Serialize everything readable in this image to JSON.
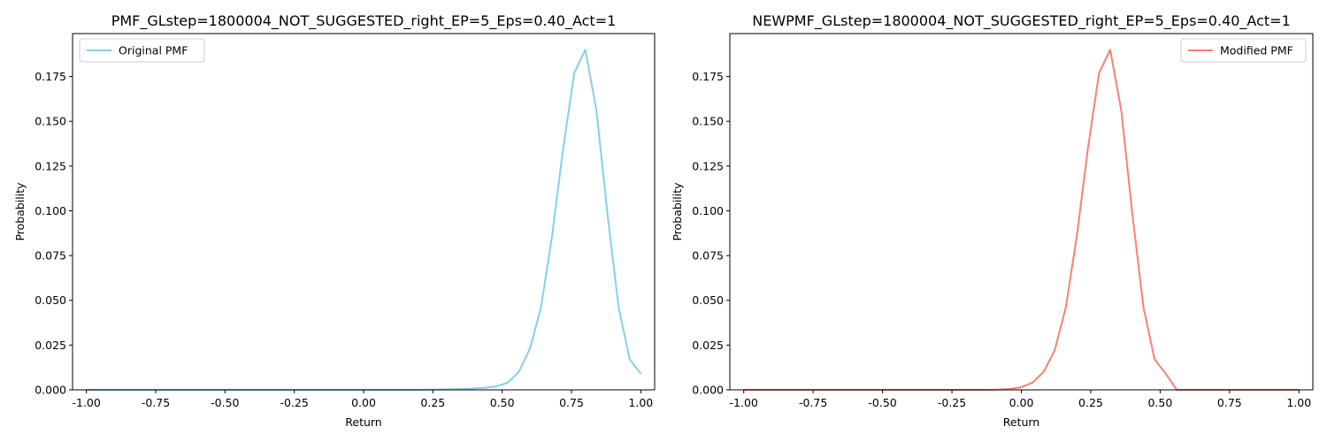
{
  "figure": {
    "background": "#ffffff"
  },
  "chart_data": [
    {
      "type": "line",
      "title": "PMF_GLstep=1800004_NOT_SUGGESTED_right_EP=5_Eps=0.40_Act=1",
      "xlabel": "Return",
      "ylabel": "Probability",
      "xlim": [
        -1.05,
        1.05
      ],
      "ylim": [
        0,
        0.199
      ],
      "xticks": [
        -1.0,
        -0.75,
        -0.5,
        -0.25,
        0.0,
        0.25,
        0.5,
        0.75,
        1.0
      ],
      "xtick_labels": [
        "-1.00",
        "-0.75",
        "-0.50",
        "-0.25",
        "0.00",
        "0.25",
        "0.50",
        "0.75",
        "1.00"
      ],
      "yticks": [
        0,
        0.025,
        0.05,
        0.075,
        0.1,
        0.125,
        0.15,
        0.175
      ],
      "ytick_labels": [
        "0.000",
        "0.025",
        "0.050",
        "0.075",
        "0.100",
        "0.125",
        "0.150",
        "0.175"
      ],
      "legend_position": "upper-left",
      "series": [
        {
          "name": "Original PMF",
          "color": "#87ceeb",
          "x": [
            -1.0,
            -0.96,
            -0.92,
            -0.88,
            -0.84,
            -0.8,
            -0.76,
            -0.72,
            -0.68,
            -0.64,
            -0.6,
            -0.56,
            -0.52,
            -0.48,
            -0.44,
            -0.4,
            -0.36,
            -0.32,
            -0.28,
            -0.24,
            -0.2,
            -0.16,
            -0.12,
            -0.08,
            -0.04,
            0.0,
            0.04,
            0.08,
            0.12,
            0.16,
            0.2,
            0.24,
            0.28,
            0.32,
            0.36,
            0.4,
            0.44,
            0.48,
            0.52,
            0.56,
            0.6,
            0.64,
            0.68,
            0.72,
            0.76,
            0.8,
            0.84,
            0.88,
            0.92,
            0.96,
            1.0
          ],
          "y": [
            0,
            0,
            0,
            0,
            0,
            0,
            0,
            0,
            0,
            0,
            0,
            0,
            0,
            0,
            0,
            0,
            0,
            0,
            0,
            0,
            0,
            0,
            0,
            0,
            0,
            0,
            0,
            0,
            0,
            0,
            0,
            0.0001,
            0.0002,
            0.0003,
            0.0005,
            0.0008,
            0.0012,
            0.002,
            0.004,
            0.01,
            0.023,
            0.046,
            0.086,
            0.135,
            0.177,
            0.19,
            0.156,
            0.098,
            0.046,
            0.017,
            0.009
          ]
        }
      ]
    },
    {
      "type": "line",
      "title": "NEWPMF_GLstep=1800004_NOT_SUGGESTED_right_EP=5_Eps=0.40_Act=1",
      "xlabel": "Return",
      "ylabel": "Probability",
      "xlim": [
        -1.05,
        1.05
      ],
      "ylim": [
        0,
        0.199
      ],
      "xticks": [
        -1.0,
        -0.75,
        -0.5,
        -0.25,
        0.0,
        0.25,
        0.5,
        0.75,
        1.0
      ],
      "xtick_labels": [
        "-1.00",
        "-0.75",
        "-0.50",
        "-0.25",
        "0.00",
        "0.25",
        "0.50",
        "0.75",
        "1.00"
      ],
      "yticks": [
        0,
        0.025,
        0.05,
        0.075,
        0.1,
        0.125,
        0.15,
        0.175
      ],
      "ytick_labels": [
        "0.000",
        "0.025",
        "0.050",
        "0.075",
        "0.100",
        "0.125",
        "0.150",
        "0.175"
      ],
      "legend_position": "upper-right",
      "series": [
        {
          "name": "Modified PMF",
          "color": "#fa8072",
          "x": [
            -1.0,
            -0.96,
            -0.92,
            -0.88,
            -0.84,
            -0.8,
            -0.76,
            -0.72,
            -0.68,
            -0.64,
            -0.6,
            -0.56,
            -0.52,
            -0.48,
            -0.44,
            -0.4,
            -0.36,
            -0.32,
            -0.28,
            -0.24,
            -0.2,
            -0.16,
            -0.12,
            -0.08,
            -0.04,
            0.0,
            0.04,
            0.08,
            0.12,
            0.16,
            0.2,
            0.24,
            0.28,
            0.32,
            0.36,
            0.4,
            0.44,
            0.48,
            0.52,
            0.56,
            0.6,
            0.64,
            0.68,
            0.72,
            0.76,
            0.8,
            0.84,
            0.88,
            0.92,
            0.96,
            1.0
          ],
          "y": [
            0,
            0,
            0,
            0,
            0,
            0,
            0,
            0,
            0,
            0,
            0,
            0,
            0,
            0,
            0,
            0,
            0,
            0,
            0,
            0,
            0,
            0,
            0,
            0.0001,
            0.0005,
            0.0015,
            0.004,
            0.01,
            0.022,
            0.046,
            0.086,
            0.135,
            0.177,
            0.19,
            0.156,
            0.098,
            0.046,
            0.017,
            0.009,
            0,
            0,
            0,
            0,
            0,
            0,
            0,
            0,
            0,
            0,
            0,
            0
          ]
        }
      ]
    }
  ]
}
